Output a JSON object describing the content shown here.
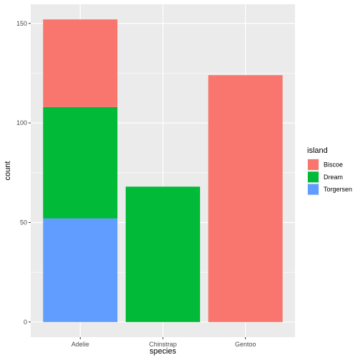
{
  "chart_data": {
    "type": "bar",
    "stacked": true,
    "categories": [
      "Adelie",
      "Chinstrap",
      "Gentoo"
    ],
    "series": [
      {
        "name": "Biscoe",
        "color": "#F8766D",
        "values": [
          44,
          0,
          124
        ]
      },
      {
        "name": "Dream",
        "color": "#00BA38",
        "values": [
          56,
          68,
          0
        ]
      },
      {
        "name": "Torgersen",
        "color": "#619CFF",
        "values": [
          52,
          0,
          0
        ]
      }
    ],
    "xlabel": "species",
    "ylabel": "count",
    "ylim": [
      -7.6,
      159.6
    ],
    "yticks": [
      0,
      50,
      100,
      150
    ],
    "grid": true,
    "legend": {
      "title": "island",
      "position": "right"
    },
    "panel_background": "#EBEBEB",
    "gridline_color": "#FFFFFF"
  }
}
